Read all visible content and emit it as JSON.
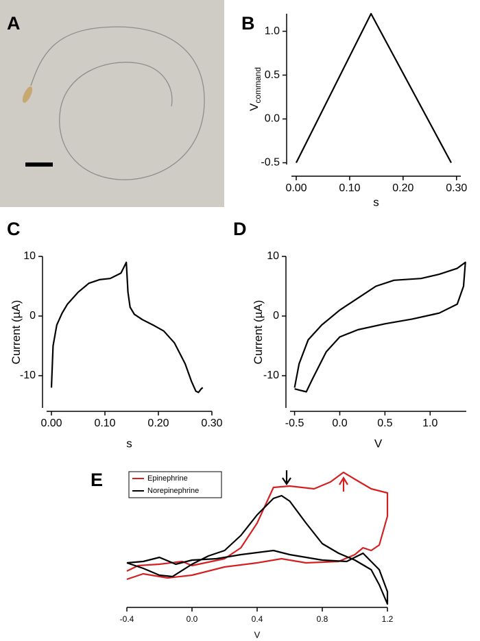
{
  "image_panel": {
    "panel": "A"
  },
  "chart_data": [
    {
      "type": "line",
      "panel": "B",
      "x_label": "s",
      "y_label": "V",
      "y_label_sub": "command",
      "xlim": [
        -0.009,
        0.308
      ],
      "ylim": [
        -0.52,
        1.2
      ],
      "xticks": [
        {
          "value": 0,
          "label": "0.00"
        },
        {
          "value": 0.1,
          "label": "0.10"
        },
        {
          "value": 0.2,
          "label": "0.20"
        },
        {
          "value": 0.3,
          "label": "0.30"
        }
      ],
      "yticks": [
        -0.5,
        {
          "value": 0,
          "label": "0.0"
        },
        0.5,
        {
          "value": 1,
          "label": "1.0"
        }
      ],
      "series": [
        {
          "color": "#000000",
          "x": [
            0,
            0.14,
            0.29
          ],
          "values": [
            -0.5,
            1.2,
            -0.5
          ]
        }
      ]
    },
    {
      "type": "line",
      "panel": "C",
      "x_label": "s",
      "y_label": "Current (µA)",
      "xlim": [
        -0.009,
        0.3
      ],
      "ylim": [
        -15.4,
        10
      ],
      "xticks": [
        {
          "value": 0,
          "label": "0.00"
        },
        {
          "value": 0.1,
          "label": "0.10"
        },
        {
          "value": 0.2,
          "label": "0.20"
        },
        {
          "value": 0.3,
          "label": "0.30"
        }
      ],
      "yticks": [
        -10,
        0,
        10
      ],
      "series": [
        {
          "color": "#000000",
          "x": [
            0,
            0.003,
            0.01,
            0.02,
            0.03,
            0.05,
            0.07,
            0.09,
            0.11,
            0.13,
            0.14,
            0.143,
            0.147,
            0.155,
            0.17,
            0.19,
            0.21,
            0.23,
            0.25,
            0.262,
            0.27,
            0.275,
            0.28,
            0.283
          ],
          "values": [
            -12,
            -5,
            -1.5,
            0.5,
            2,
            4,
            5.5,
            6.1,
            6.3,
            7.2,
            9,
            4,
            1.5,
            0.3,
            -0.6,
            -1.5,
            -2.5,
            -4.5,
            -8,
            -11,
            -12.6,
            -12.8,
            -12.2,
            -12
          ]
        }
      ]
    },
    {
      "type": "line",
      "panel": "D",
      "x_label": "V",
      "y_label": "Current (µA)",
      "xlim": [
        -0.55,
        1.4
      ],
      "ylim": [
        -15.4,
        10
      ],
      "xticks": [
        -0.5,
        {
          "value": 0,
          "label": "0.0"
        },
        0.5,
        {
          "value": 1,
          "label": "1.0"
        }
      ],
      "yticks": [
        -10,
        0,
        10
      ],
      "series": [
        {
          "color": "#000000",
          "x": [
            -0.5,
            -0.45,
            -0.35,
            -0.2,
            0,
            0.2,
            0.4,
            0.6,
            0.9,
            1.1,
            1.3,
            1.39,
            1.37,
            1.3,
            1.1,
            0.8,
            0.5,
            0.2,
            0,
            -0.15,
            -0.3,
            -0.37,
            -0.45,
            -0.5
          ],
          "values": [
            -12,
            -8,
            -4,
            -1.5,
            1,
            3,
            5,
            6,
            6.3,
            7,
            8,
            9,
            5,
            2,
            0.5,
            -0.5,
            -1.3,
            -2.3,
            -3.5,
            -6,
            -10.5,
            -12.7,
            -12.4,
            -12.2
          ]
        }
      ]
    },
    {
      "type": "line",
      "panel": "E",
      "x_label": "V",
      "legend": "upper left",
      "xlim": [
        -0.4,
        1.2
      ],
      "ylim": [
        0,
        100
      ],
      "xticks": [
        -0.4,
        {
          "value": 0,
          "label": "0.0"
        },
        0.4,
        0.8,
        1.2
      ],
      "series": [
        {
          "name": "Epinephrine",
          "color": "#d42020",
          "x": [
            -0.4,
            -0.33,
            -0.2,
            -0.06,
            0,
            0.2,
            0.3,
            0.4,
            0.5,
            0.6,
            0.75,
            0.85,
            0.93,
            1.0,
            1.1,
            1.2,
            1.2,
            1.15,
            1.1,
            1.05,
            1.0,
            0.9,
            0.7,
            0.55,
            0.4,
            0.2,
            0,
            -0.15,
            -0.3,
            -0.4
          ],
          "values": [
            25,
            29,
            30,
            32,
            29,
            34,
            42,
            60,
            86,
            87,
            85,
            90,
            97,
            92,
            85,
            82,
            65,
            44,
            40,
            42,
            37,
            32,
            31,
            34,
            31,
            28,
            22,
            20,
            23,
            19
          ]
        },
        {
          "name": "Norepinephrine",
          "color": "#000000",
          "x": [
            -0.4,
            -0.3,
            -0.2,
            -0.12,
            0,
            0.1,
            0.2,
            0.3,
            0.4,
            0.5,
            0.55,
            0.6,
            0.7,
            0.8,
            0.9,
            1.0,
            1.1,
            1.15,
            1.2,
            1.2,
            1.15,
            1.05,
            0.95,
            0.8,
            0.6,
            0.5,
            0.3,
            0.15,
            0,
            -0.1,
            -0.2,
            -0.3,
            -0.4
          ],
          "values": [
            31,
            27,
            22,
            21,
            30,
            36,
            40,
            51,
            66,
            78,
            80,
            76,
            60,
            45,
            38,
            33,
            26,
            15,
            1,
            10,
            26,
            38,
            32,
            33,
            37,
            40,
            37,
            34,
            33,
            30,
            35,
            32,
            31
          ]
        }
      ]
    }
  ]
}
